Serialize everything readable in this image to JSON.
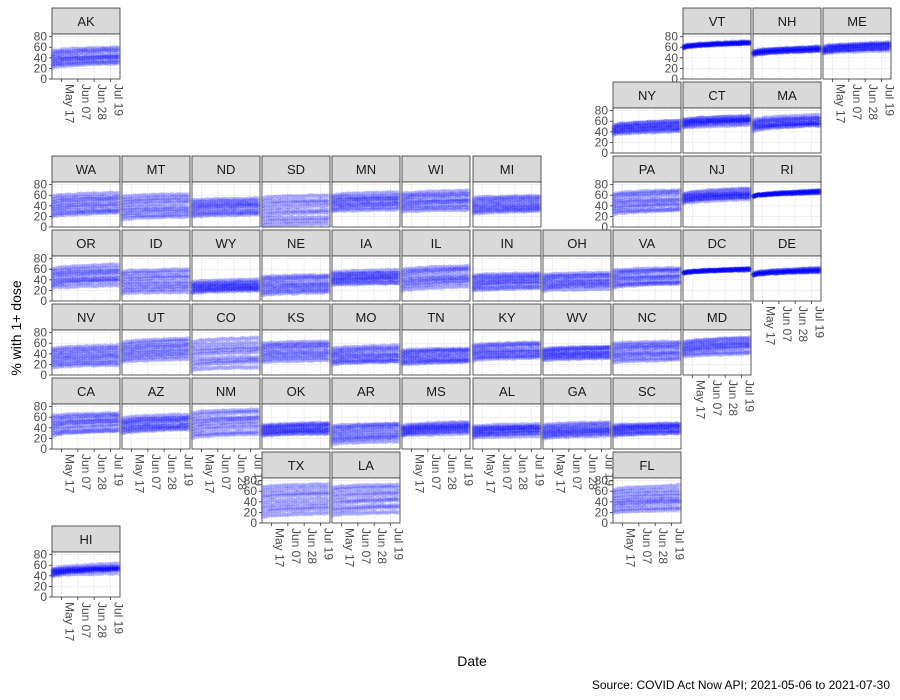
{
  "chart_data": {
    "type": "scatter",
    "layout": "small multiples arranged as a US state grid map",
    "xlabel": "Date",
    "ylabel": "% with 1+ dose",
    "caption": "Source: COVID Act Now API; 2021-05-06  to  2021-07-30",
    "x_range": [
      "2021-05-06",
      "2021-07-30"
    ],
    "x_ticks": [
      "May 17",
      "Jun 07",
      "Jun 28",
      "Jul 19"
    ],
    "ylim": [
      0,
      85
    ],
    "y_ticks": [
      0,
      20,
      40,
      60,
      80
    ],
    "point_color": "#0000ff",
    "point_alpha": 0.2,
    "grid": true,
    "panel_background": "#ffffff",
    "strip_background": "#d9d9d9",
    "panels": [
      {
        "state": "AK",
        "row": 0,
        "col": 0,
        "low": 22,
        "high": 60,
        "growth": 8
      },
      {
        "state": "VT",
        "row": 0,
        "col": 9,
        "low": 58,
        "high": 72,
        "growth": 10
      },
      {
        "state": "NH",
        "row": 0,
        "col": 10,
        "low": 45,
        "high": 62,
        "growth": 10
      },
      {
        "state": "ME",
        "row": 0,
        "col": 11,
        "low": 48,
        "high": 70,
        "growth": 9
      },
      {
        "state": "NY",
        "row": 1,
        "col": 8,
        "low": 35,
        "high": 62,
        "growth": 10
      },
      {
        "state": "CT",
        "row": 1,
        "col": 9,
        "low": 48,
        "high": 72,
        "growth": 9
      },
      {
        "state": "MA",
        "row": 1,
        "col": 10,
        "low": 42,
        "high": 72,
        "growth": 10
      },
      {
        "state": "WA",
        "row": 2,
        "col": 0,
        "low": 20,
        "high": 65,
        "growth": 8
      },
      {
        "state": "MT",
        "row": 2,
        "col": 1,
        "low": 15,
        "high": 62,
        "growth": 6
      },
      {
        "state": "ND",
        "row": 2,
        "col": 2,
        "low": 20,
        "high": 55,
        "growth": 5
      },
      {
        "state": "SD",
        "row": 2,
        "col": 3,
        "low": 2,
        "high": 60,
        "growth": 6
      },
      {
        "state": "MN",
        "row": 2,
        "col": 4,
        "low": 30,
        "high": 65,
        "growth": 6
      },
      {
        "state": "WI",
        "row": 2,
        "col": 5,
        "low": 30,
        "high": 68,
        "growth": 6
      },
      {
        "state": "MI",
        "row": 2,
        "col": 6,
        "low": 25,
        "high": 60,
        "growth": 6
      },
      {
        "state": "PA",
        "row": 2,
        "col": 8,
        "low": 25,
        "high": 70,
        "growth": 8
      },
      {
        "state": "NJ",
        "row": 2,
        "col": 9,
        "low": 45,
        "high": 72,
        "growth": 10
      },
      {
        "state": "RI",
        "row": 2,
        "col": 10,
        "low": 58,
        "high": 68,
        "growth": 10
      },
      {
        "state": "OR",
        "row": 3,
        "col": 0,
        "low": 25,
        "high": 68,
        "growth": 8
      },
      {
        "state": "ID",
        "row": 3,
        "col": 1,
        "low": 15,
        "high": 60,
        "growth": 5
      },
      {
        "state": "WY",
        "row": 3,
        "col": 2,
        "low": 15,
        "high": 40,
        "growth": 5
      },
      {
        "state": "NE",
        "row": 3,
        "col": 3,
        "low": 12,
        "high": 50,
        "growth": 5
      },
      {
        "state": "IA",
        "row": 3,
        "col": 4,
        "low": 30,
        "high": 58,
        "growth": 5
      },
      {
        "state": "IL",
        "row": 3,
        "col": 5,
        "low": 20,
        "high": 68,
        "growth": 10
      },
      {
        "state": "IN",
        "row": 3,
        "col": 6,
        "low": 20,
        "high": 55,
        "growth": 7
      },
      {
        "state": "OH",
        "row": 3,
        "col": 7,
        "low": 20,
        "high": 55,
        "growth": 6
      },
      {
        "state": "VA",
        "row": 3,
        "col": 8,
        "low": 25,
        "high": 65,
        "growth": 8
      },
      {
        "state": "DC",
        "row": 3,
        "col": 9,
        "low": 52,
        "high": 62,
        "growth": 8
      },
      {
        "state": "DE",
        "row": 3,
        "col": 10,
        "low": 48,
        "high": 62,
        "growth": 10
      },
      {
        "state": "NV",
        "row": 4,
        "col": 0,
        "low": 15,
        "high": 55,
        "growth": 6
      },
      {
        "state": "UT",
        "row": 4,
        "col": 1,
        "low": 25,
        "high": 68,
        "growth": 8
      },
      {
        "state": "CO",
        "row": 4,
        "col": 2,
        "low": 10,
        "high": 70,
        "growth": 8
      },
      {
        "state": "KS",
        "row": 4,
        "col": 3,
        "low": 25,
        "high": 65,
        "growth": 6
      },
      {
        "state": "MO",
        "row": 4,
        "col": 4,
        "low": 20,
        "high": 55,
        "growth": 6
      },
      {
        "state": "TN",
        "row": 4,
        "col": 5,
        "low": 20,
        "high": 52,
        "growth": 6
      },
      {
        "state": "KY",
        "row": 4,
        "col": 6,
        "low": 28,
        "high": 62,
        "growth": 6
      },
      {
        "state": "WV",
        "row": 4,
        "col": 7,
        "low": 28,
        "high": 55,
        "growth": 6
      },
      {
        "state": "NC",
        "row": 4,
        "col": 8,
        "low": 25,
        "high": 65,
        "growth": 6
      },
      {
        "state": "MD",
        "row": 4,
        "col": 9,
        "low": 35,
        "high": 72,
        "growth": 10
      },
      {
        "state": "CA",
        "row": 5,
        "col": 0,
        "low": 25,
        "high": 72,
        "growth": 10
      },
      {
        "state": "AZ",
        "row": 5,
        "col": 1,
        "low": 30,
        "high": 65,
        "growth": 8
      },
      {
        "state": "NM",
        "row": 5,
        "col": 2,
        "low": 22,
        "high": 75,
        "growth": 8
      },
      {
        "state": "OK",
        "row": 5,
        "col": 3,
        "low": 25,
        "high": 50,
        "growth": 6
      },
      {
        "state": "AR",
        "row": 5,
        "col": 4,
        "low": 10,
        "high": 50,
        "growth": 7
      },
      {
        "state": "MS",
        "row": 5,
        "col": 5,
        "low": 25,
        "high": 50,
        "growth": 7
      },
      {
        "state": "AL",
        "row": 5,
        "col": 6,
        "low": 22,
        "high": 48,
        "growth": 6
      },
      {
        "state": "GA",
        "row": 5,
        "col": 7,
        "low": 20,
        "high": 50,
        "growth": 6
      },
      {
        "state": "SC",
        "row": 5,
        "col": 8,
        "low": 25,
        "high": 50,
        "growth": 6
      },
      {
        "state": "TX",
        "row": 6,
        "col": 3,
        "low": 12,
        "high": 75,
        "growth": 8
      },
      {
        "state": "LA",
        "row": 6,
        "col": 4,
        "low": 15,
        "high": 75,
        "growth": 8
      },
      {
        "state": "FL",
        "row": 6,
        "col": 8,
        "low": 20,
        "high": 70,
        "growth": 8
      },
      {
        "state": "HI",
        "row": 7,
        "col": 0,
        "low": 40,
        "high": 62,
        "growth": 10
      }
    ]
  }
}
